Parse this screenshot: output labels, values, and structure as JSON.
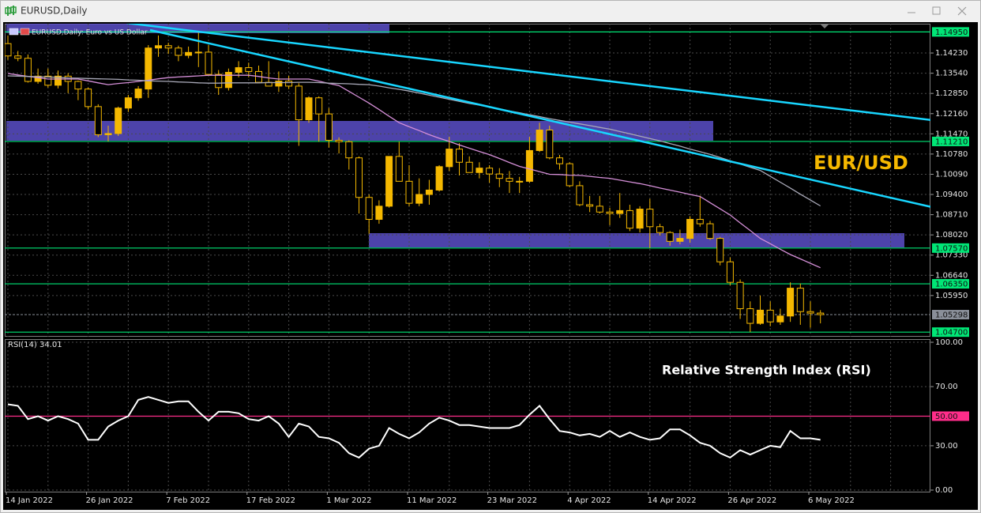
{
  "window": {
    "title": "EURUSD,Daily"
  },
  "chart_data": [
    {
      "type": "candlestick",
      "legend_text": "EURUSD,Daily:  Euro vs US Dollar",
      "annotation": "EUR/USD",
      "annotation_color": "#f5b800",
      "categories": [
        "14 Jan 2022",
        null,
        null,
        null,
        null,
        null,
        null,
        null,
        "26 Jan 2022",
        null,
        null,
        null,
        null,
        null,
        null,
        null,
        "7 Feb 2022",
        null,
        null,
        null,
        null,
        null,
        null,
        null,
        "17 Feb 2022",
        null,
        null,
        null,
        null,
        null,
        null,
        null,
        "1 Mar 2022",
        null,
        null,
        null,
        null,
        null,
        null,
        null,
        "11 Mar 2022",
        null,
        null,
        null,
        null,
        null,
        null,
        null,
        "23 Mar 2022",
        null,
        null,
        null,
        null,
        null,
        null,
        null,
        "4 Apr 2022",
        null,
        null,
        null,
        null,
        null,
        null,
        null,
        "14 Apr 2022",
        null,
        null,
        null,
        null,
        null,
        null,
        null,
        "26 Apr 2022",
        null,
        null,
        null,
        null,
        null,
        null,
        null,
        "6 May 2022",
        null
      ],
      "open": [
        1.1455,
        1.1413,
        1.1405,
        1.1326,
        1.1344,
        1.1313,
        1.1344,
        1.1326,
        1.13,
        1.124,
        1.1144,
        1.1148,
        1.1235,
        1.127,
        1.13,
        1.144,
        1.1448,
        1.144,
        1.1415,
        1.1425,
        1.1426,
        1.135,
        1.1305,
        1.1357,
        1.1373,
        1.136,
        1.1323,
        1.131,
        1.1327,
        1.131,
        1.1195,
        1.127,
        1.1215,
        1.1125,
        1.112,
        1.1065,
        1.093,
        1.0855,
        1.09,
        1.107,
        1.0985,
        1.091,
        1.094,
        1.0955,
        1.1035,
        1.1095,
        1.105,
        1.1015,
        1.103,
        1.101,
        1.0995,
        1.0985,
        1.0985,
        1.109,
        1.116,
        1.1065,
        1.1045,
        1.097,
        1.0905,
        1.09,
        1.088,
        1.0875,
        1.0885,
        1.0825,
        1.089,
        1.083,
        1.081,
        1.078,
        1.079,
        1.0855,
        1.084,
        1.079,
        1.071,
        1.064,
        1.055,
        1.05,
        1.0545,
        1.0505,
        1.0525,
        1.062,
        1.054,
        1.0535
      ],
      "high": [
        1.1483,
        1.143,
        1.1418,
        1.137,
        1.137,
        1.1363,
        1.1354,
        1.1329,
        1.1305,
        1.1248,
        1.1175,
        1.124,
        1.128,
        1.131,
        1.145,
        1.1483,
        1.1458,
        1.1448,
        1.1445,
        1.1495,
        1.145,
        1.1365,
        1.137,
        1.1395,
        1.139,
        1.138,
        1.1395,
        1.136,
        1.1345,
        1.132,
        1.1275,
        1.1275,
        1.1235,
        1.1135,
        1.1125,
        1.107,
        1.094,
        1.092,
        1.107,
        1.112,
        1.104,
        1.0995,
        1.099,
        1.104,
        1.1137,
        1.1115,
        1.107,
        1.105,
        1.104,
        1.103,
        1.102,
        1.1,
        1.1137,
        1.1185,
        1.1175,
        1.1075,
        1.105,
        1.0985,
        1.0935,
        1.0935,
        1.0895,
        1.0945,
        1.0905,
        1.09,
        1.0925,
        1.084,
        1.0815,
        1.082,
        1.0866,
        1.0936,
        1.085,
        1.0795,
        1.0725,
        1.065,
        1.0575,
        1.0595,
        1.0575,
        1.055,
        1.064,
        1.0636,
        1.0575,
        1.0545
      ],
      "low": [
        1.14,
        1.1395,
        1.1322,
        1.1318,
        1.1305,
        1.1302,
        1.1286,
        1.1262,
        1.123,
        1.1136,
        1.1121,
        1.114,
        1.1222,
        1.126,
        1.127,
        1.141,
        1.142,
        1.1395,
        1.1405,
        1.1375,
        1.135,
        1.128,
        1.1295,
        1.134,
        1.134,
        1.132,
        1.131,
        1.129,
        1.13,
        1.1106,
        1.1185,
        1.112,
        1.11,
        1.108,
        1.1025,
        1.0875,
        1.0806,
        1.084,
        1.0895,
        1.0985,
        1.09,
        1.09,
        1.0905,
        1.095,
        1.102,
        1.1005,
        1.1015,
        1.0995,
        1.098,
        1.0965,
        1.0945,
        1.0945,
        1.098,
        1.1085,
        1.106,
        1.1025,
        1.0965,
        1.09,
        1.088,
        1.0875,
        1.0835,
        1.086,
        1.0815,
        1.081,
        1.0757,
        1.08,
        1.0765,
        1.077,
        1.0775,
        1.083,
        1.0785,
        1.0698,
        1.063,
        1.0515,
        1.047,
        1.0495,
        1.049,
        1.0495,
        1.0505,
        1.0495,
        1.0485,
        1.05
      ],
      "close": [
        1.1413,
        1.1405,
        1.1326,
        1.1344,
        1.1313,
        1.1344,
        1.1326,
        1.13,
        1.124,
        1.1144,
        1.1148,
        1.1235,
        1.127,
        1.13,
        1.144,
        1.1448,
        1.144,
        1.1415,
        1.1425,
        1.1426,
        1.135,
        1.1305,
        1.1357,
        1.1373,
        1.136,
        1.1323,
        1.131,
        1.1327,
        1.131,
        1.1195,
        1.127,
        1.1215,
        1.1125,
        1.112,
        1.1065,
        1.093,
        1.0855,
        1.09,
        1.107,
        1.0985,
        1.091,
        1.094,
        1.0955,
        1.1035,
        1.1095,
        1.105,
        1.1015,
        1.103,
        1.101,
        1.0995,
        1.0985,
        1.0985,
        1.109,
        1.116,
        1.1065,
        1.1045,
        1.097,
        1.0905,
        1.09,
        1.088,
        1.0875,
        1.0885,
        1.0825,
        1.089,
        1.083,
        1.081,
        1.078,
        1.079,
        1.0855,
        1.084,
        1.079,
        1.071,
        1.064,
        1.055,
        1.05,
        1.0545,
        1.0505,
        1.0525,
        1.062,
        1.054,
        1.0535,
        1.05298
      ],
      "up_color": "#f5b800",
      "down_color": "#000000",
      "wick_color": "#f5b800",
      "series": [
        {
          "color": "#d58fd8",
          "values": [
            1.1353,
            1.1348,
            1.1343,
            1.1339,
            1.1334,
            1.1334,
            1.1334,
            1.1334,
            1.1328,
            1.1321,
            1.1315,
            1.1319,
            1.1322,
            1.1326,
            1.133,
            1.1335,
            1.1339,
            1.1341,
            1.1343,
            1.1345,
            1.1347,
            1.1347,
            1.1347,
            1.1347,
            1.1347,
            1.1343,
            1.1338,
            1.1334,
            1.1334,
            1.1334,
            1.1334,
            1.1327,
            1.1319,
            1.1312,
            1.1292,
            1.1272,
            1.1252,
            1.123,
            1.1207,
            1.1185,
            1.1171,
            1.1158,
            1.1144,
            1.1132,
            1.1121,
            1.1109,
            1.1098,
            1.1087,
            1.1076,
            1.1063,
            1.1049,
            1.1036,
            1.1027,
            1.1018,
            1.1009,
            1.1008,
            1.1006,
            1.1005,
            1.1002,
            1.0998,
            1.0995,
            1.0989,
            1.0983,
            1.0977,
            1.097,
            1.0962,
            1.0955,
            1.0948,
            1.094,
            1.0933,
            1.0912,
            1.0891,
            1.087,
            1.0843,
            1.0817,
            1.079,
            1.0772,
            1.0753,
            1.0735,
            1.072,
            1.0705,
            1.069
          ]
        },
        {
          "color": "#a9a9b8",
          "values": [
            1.1345,
            1.1344,
            1.1343,
            1.1342,
            1.1341,
            1.134,
            1.1338,
            1.1337,
            1.1336,
            1.1335,
            1.1334,
            1.1333,
            1.1331,
            1.133,
            1.1328,
            1.1327,
            1.1326,
            1.1324,
            1.1323,
            1.1321,
            1.132,
            1.132,
            1.1321,
            1.1321,
            1.1321,
            1.1321,
            1.1322,
            1.1322,
            1.1322,
            1.1323,
            1.1323,
            1.1322,
            1.132,
            1.1319,
            1.1318,
            1.1316,
            1.1315,
            1.131,
            1.1304,
            1.1299,
            1.1293,
            1.1286,
            1.1279,
            1.1272,
            1.1265,
            1.1258,
            1.1251,
            1.1245,
            1.1238,
            1.1232,
            1.1225,
            1.1219,
            1.1212,
            1.1206,
            1.1199,
            1.1193,
            1.1187,
            1.1181,
            1.1175,
            1.1169,
            1.1163,
            1.1155,
            1.1147,
            1.1139,
            1.1131,
            1.1123,
            1.1114,
            1.1105,
            1.1095,
            1.1086,
            1.1077,
            1.1066,
            1.1055,
            1.1044,
            1.1033,
            1.1022,
            1.1002,
            1.0982,
            1.0962,
            1.0941,
            1.0921,
            1.0901
          ]
        }
      ],
      "ylim": [
        1.0457,
        1.1523
      ],
      "yticks": [
        {
          "value": 1.1423,
          "label": "1.14230"
        },
        {
          "value": 1.1354,
          "label": "1.13540"
        },
        {
          "value": 1.1285,
          "label": "1.12850"
        },
        {
          "value": 1.1216,
          "label": "1.12160"
        },
        {
          "value": 1.1147,
          "label": "1.11470"
        },
        {
          "value": 1.1078,
          "label": "1.10780"
        },
        {
          "value": 1.1009,
          "label": "1.10090"
        },
        {
          "value": 1.094,
          "label": "1.09400"
        },
        {
          "value": 1.0871,
          "label": "1.08710"
        },
        {
          "value": 1.0802,
          "label": "1.08020"
        },
        {
          "value": 1.0733,
          "label": "1.07330"
        },
        {
          "value": 1.0664,
          "label": "1.06640"
        },
        {
          "value": 1.0595,
          "label": "1.05950"
        }
      ],
      "levels": [
        {
          "value": 1.1495,
          "label": "1.14950"
        },
        {
          "value": 1.1121,
          "label": "1.11210"
        },
        {
          "value": 1.0757,
          "label": "1.07570"
        },
        {
          "value": 1.0635,
          "label": "1.06350"
        },
        {
          "value": 1.047,
          "label": "1.04700"
        }
      ],
      "level_color": "#00e676",
      "current_price": {
        "value": 1.05298,
        "label": "1.05298"
      },
      "current_price_color": "#8a8f99",
      "grid": true
    },
    {
      "type": "line",
      "title": "RSI(14) 34.01",
      "annotation": "Relative Strength Index (RSI)",
      "annotation_color": "#ffffff",
      "series": [
        {
          "color": "#ffffff",
          "values": [
            58,
            57,
            48,
            50,
            47,
            50,
            48,
            45,
            34,
            34,
            43,
            47,
            50,
            61,
            63,
            61,
            59,
            60,
            60,
            53,
            47,
            53,
            53,
            52,
            48,
            47,
            50,
            45,
            36,
            45,
            43,
            36,
            35,
            32,
            25,
            22,
            28,
            30,
            42,
            38,
            35,
            39,
            45,
            49,
            47,
            44,
            44,
            43,
            42,
            42,
            42,
            44,
            51,
            57,
            48,
            40,
            39,
            37,
            38,
            36,
            40,
            36,
            39,
            36,
            34,
            35,
            41,
            41,
            37,
            32,
            30,
            25,
            22,
            27,
            24,
            27,
            30,
            29,
            40,
            35,
            35,
            34.01
          ]
        }
      ],
      "ylim": [
        0,
        100
      ],
      "yticks": [
        {
          "value": 0,
          "label": "0.00"
        },
        {
          "value": 30,
          "label": "30.00"
        },
        {
          "value": 70,
          "label": "70.00"
        },
        {
          "value": 100,
          "label": "100.00"
        }
      ],
      "levels": [
        {
          "value": 50,
          "label": "50.00"
        }
      ],
      "level_color": "#ff2d8a",
      "grid": true
    }
  ]
}
